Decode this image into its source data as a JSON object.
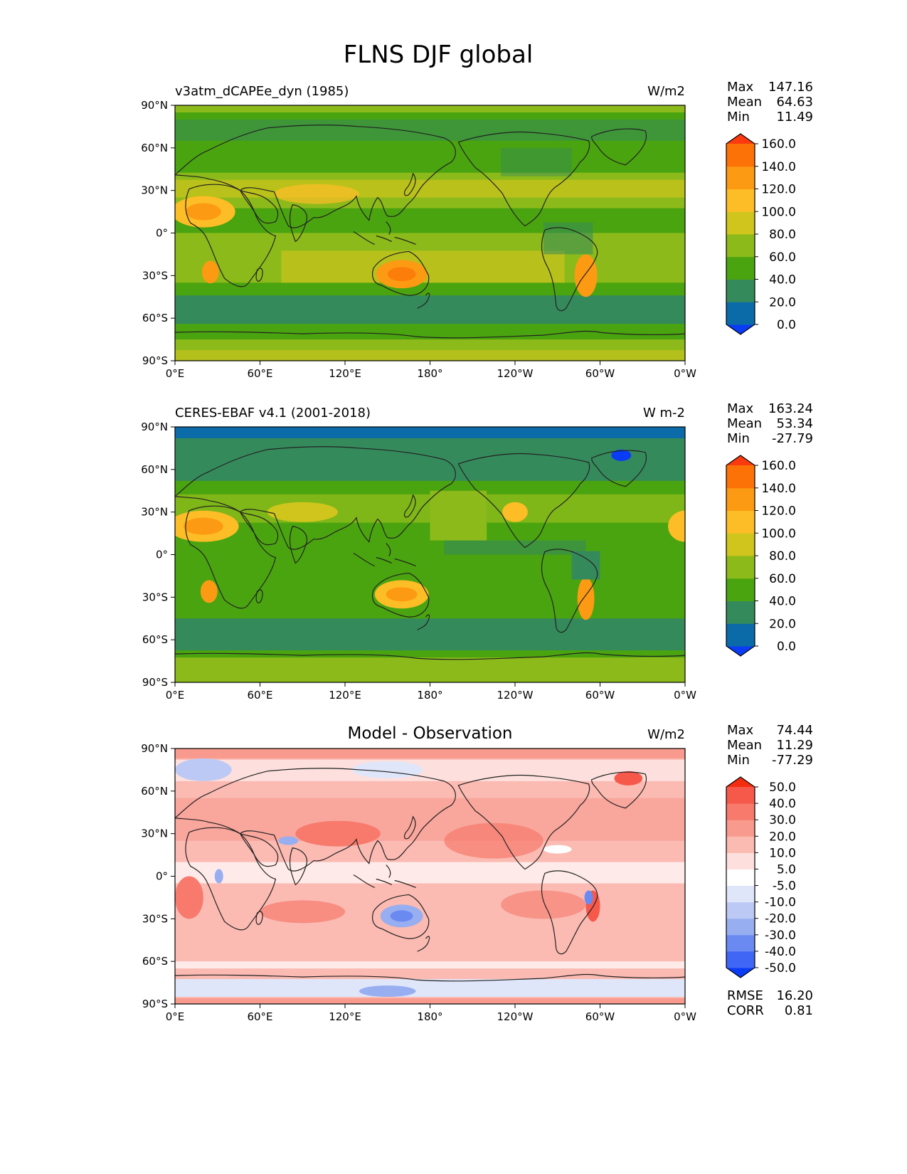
{
  "figure": {
    "title": "FLNS DJF global"
  },
  "axes": {
    "lat_ticks": [
      "90°N",
      "60°N",
      "30°N",
      "0°",
      "30°S",
      "60°S",
      "90°S"
    ],
    "lon_ticks": [
      "0°E",
      "60°E",
      "120°E",
      "180°",
      "120°W",
      "60°W",
      "0°W"
    ]
  },
  "panels": [
    {
      "title_left": "v3atm_dCAPEe_dyn (1985)",
      "title_center": "",
      "units": "W/m2",
      "stats": [
        {
          "label": "Max",
          "value": "147.16"
        },
        {
          "label": "Mean",
          "value": "64.63"
        },
        {
          "label": "Min",
          "value": "11.49"
        }
      ],
      "extra_stats": [],
      "colorbar": {
        "colors": [
          "#0a3cf5",
          "#0b6aa8",
          "#358a5c",
          "#4aa40f",
          "#8cba1a",
          "#cfc51d",
          "#fdbd26",
          "#fc9a13",
          "#fc7207",
          "#fb3a10"
        ],
        "labels": [
          "160.0",
          "140.0",
          "120.0",
          "100.0",
          "80.0",
          "60.0",
          "40.0",
          "20.0",
          "0.0"
        ]
      }
    },
    {
      "title_left": "CERES-EBAF v4.1 (2001-2018)",
      "title_center": "",
      "units": "W m-2",
      "stats": [
        {
          "label": "Max",
          "value": "163.24"
        },
        {
          "label": "Mean",
          "value": "53.34"
        },
        {
          "label": "Min",
          "value": "-27.79"
        }
      ],
      "extra_stats": [],
      "colorbar": {
        "colors": [
          "#0a3cf5",
          "#0b6aa8",
          "#358a5c",
          "#4aa40f",
          "#8cba1a",
          "#cfc51d",
          "#fdbd26",
          "#fc9a13",
          "#fc7207",
          "#fb3a10"
        ],
        "labels": [
          "160.0",
          "140.0",
          "120.0",
          "100.0",
          "80.0",
          "60.0",
          "40.0",
          "20.0",
          "0.0"
        ]
      }
    },
    {
      "title_left": "",
      "title_center": "Model - Observation",
      "units": "W/m2",
      "stats": [
        {
          "label": "Max",
          "value": "74.44"
        },
        {
          "label": "Mean",
          "value": "11.29"
        },
        {
          "label": "Min",
          "value": "-77.29"
        }
      ],
      "extra_stats": [
        {
          "label": "RMSE",
          "value": "16.20"
        },
        {
          "label": "CORR",
          "value": "0.81"
        }
      ],
      "colorbar": {
        "colors": [
          "#0a3cf5",
          "#3f66f4",
          "#6a8af2",
          "#97aef1",
          "#bcc9f4",
          "#dfe6fa",
          "#ffffff",
          "#fde0dd",
          "#fbbab2",
          "#f99a8e",
          "#f77a6c",
          "#f6594a",
          "#f52d10"
        ],
        "labels": [
          "50.0",
          "40.0",
          "30.0",
          "20.0",
          "10.0",
          "5.0",
          "-5.0",
          "-10.0",
          "-20.0",
          "-30.0",
          "-40.0",
          "-50.0"
        ]
      }
    }
  ]
}
